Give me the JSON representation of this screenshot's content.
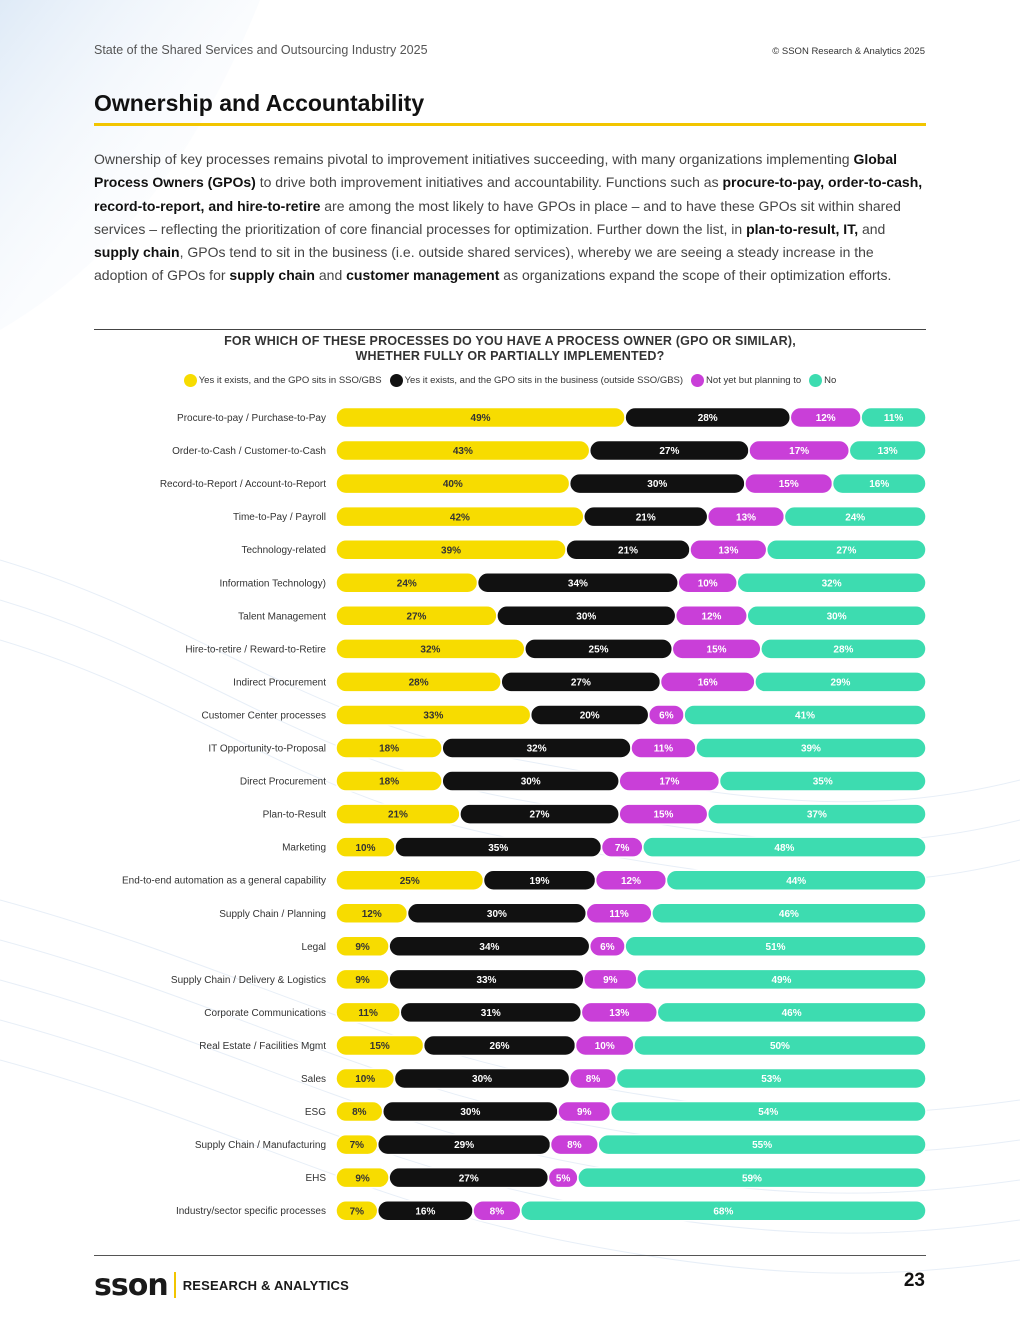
{
  "header": {
    "report_title": "State of the Shared Services and Outsourcing Industry 2025",
    "copyright": "© SSON Research & Analytics 2025"
  },
  "section": {
    "title": "Ownership and Accountability"
  },
  "body": {
    "p1": "Ownership of key processes remains pivotal to improvement initiatives succeeding, with many organizations implementing ",
    "b1": "Global Process Owners (GPOs)",
    "p2": " to drive both improvement initiatives and accountability. Functions such as ",
    "b2": "procure-to-pay, order-to-cash, record-to-report, and hire-to-retire",
    "p3": " are among the most likely to have GPOs in place – and to have these GPOs sit within shared services – reflecting the prioritization of core financial processes for optimization. Further down the list, in ",
    "b3": "plan-to-result, IT,",
    "p4": " and ",
    "b4": "supply chain",
    "p5": ", GPOs tend to sit in the business (i.e. outside shared services), whereby we are seeing a steady increase in the adoption of GPOs for ",
    "b5": "supply chain",
    "p6": " and ",
    "b6": "customer management",
    "p7": " as organizations expand the scope of their optimization efforts."
  },
  "chart_data": {
    "type": "bar",
    "stacked": true,
    "orientation": "horizontal",
    "title_line1": "FOR WHICH OF THESE PROCESSES DO YOU HAVE A PROCESS OWNER (GPO OR SIMILAR),",
    "title_line2": "WHETHER FULLY OR PARTIALLY IMPLEMENTED?",
    "legend_position": "top",
    "value_suffix": "%",
    "categories": [
      "Procure-to-pay / Purchase-to-Pay",
      "Order-to-Cash / Customer-to-Cash",
      "Record-to-Report / Account-to-Report",
      "Time-to-Pay / Payroll",
      "Technology-related",
      "Information Technology)",
      "Talent Management",
      "Hire-to-retire / Reward-to-Retire",
      "Indirect Procurement",
      "Customer Center processes",
      "IT Opportunity-to-Proposal",
      "Direct Procurement",
      "Plan-to-Result",
      "Marketing",
      "End-to-end automation as a general capability",
      "Supply Chain / Planning",
      "Legal",
      "Supply Chain / Delivery & Logistics",
      "Corporate Communications",
      "Real Estate / Facilities Mgmt",
      "Sales",
      "ESG",
      "Supply Chain / Manufacturing",
      "EHS",
      "Industry/sector specific processes"
    ],
    "series": [
      {
        "name": "Yes it exists, and the GPO sits in SSO/GBS",
        "color": "#f7dc00",
        "text_color": "#333333",
        "values": [
          49,
          43,
          40,
          42,
          39,
          24,
          27,
          32,
          28,
          33,
          18,
          18,
          21,
          10,
          25,
          12,
          9,
          9,
          11,
          15,
          10,
          8,
          7,
          9,
          7
        ]
      },
      {
        "name": "Yes it exists, and the GPO sits in the business (outside SSO/GBS)",
        "color": "#111111",
        "text_color": "#ffffff",
        "values": [
          28,
          27,
          30,
          21,
          21,
          34,
          30,
          25,
          27,
          20,
          32,
          30,
          27,
          35,
          19,
          30,
          34,
          33,
          31,
          26,
          30,
          30,
          29,
          27,
          16
        ]
      },
      {
        "name": "Not yet but planning to",
        "color": "#c93fd8",
        "text_color": "#ffffff",
        "values": [
          12,
          17,
          15,
          13,
          13,
          10,
          12,
          15,
          16,
          6,
          11,
          17,
          15,
          7,
          12,
          11,
          6,
          9,
          13,
          10,
          8,
          9,
          8,
          5,
          8
        ]
      },
      {
        "name": "No",
        "color": "#3ddcb0",
        "text_color": "#ffffff",
        "values": [
          11,
          13,
          16,
          24,
          27,
          32,
          30,
          28,
          29,
          41,
          39,
          35,
          37,
          48,
          44,
          46,
          51,
          49,
          46,
          50,
          53,
          54,
          55,
          59,
          68
        ]
      }
    ]
  },
  "footer": {
    "logo_text": "sson",
    "logo_sub": "RESEARCH & ANALYTICS",
    "page_number": "23"
  }
}
